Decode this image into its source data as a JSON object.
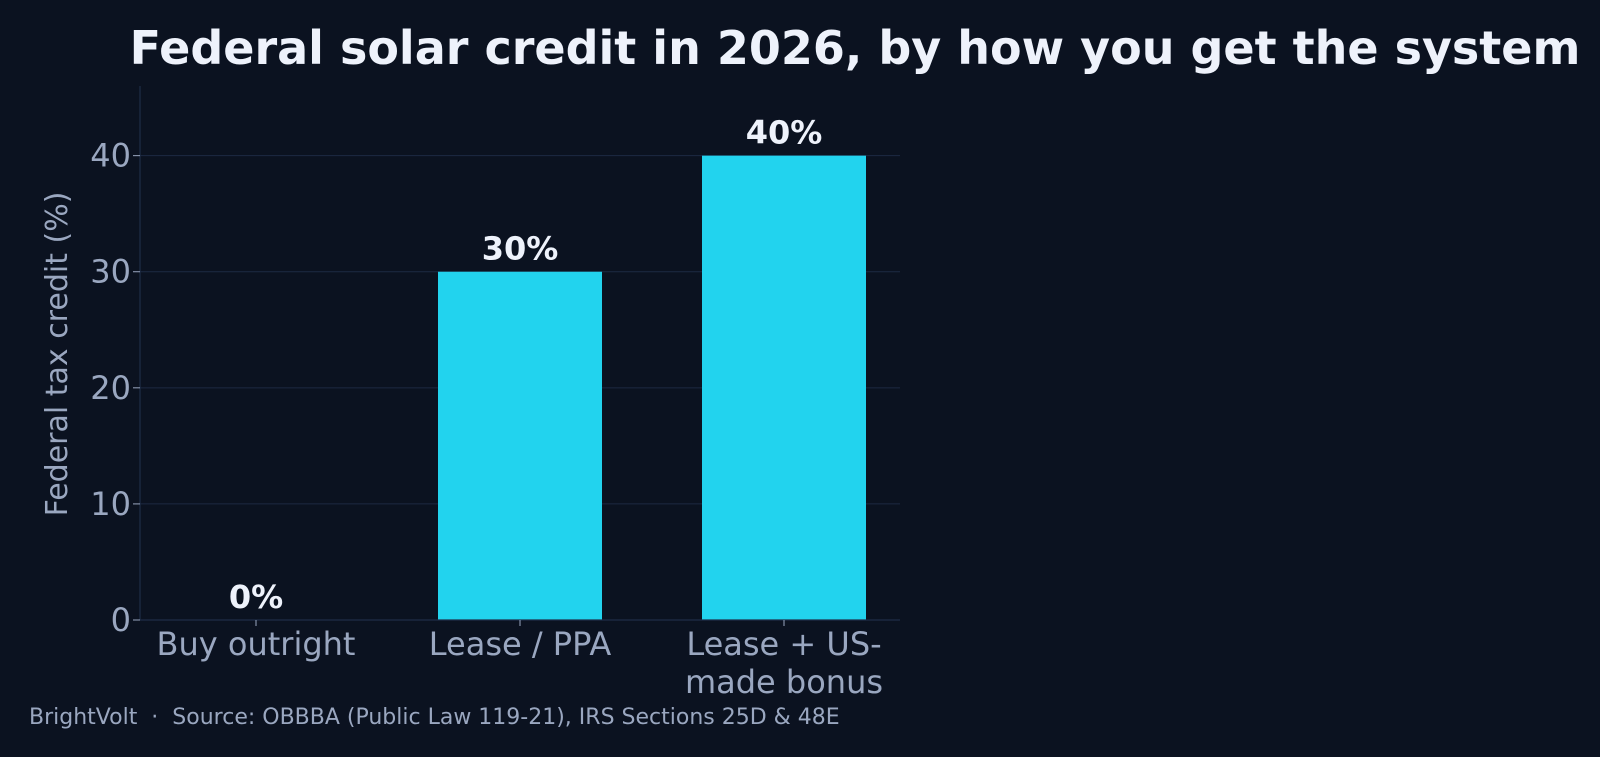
{
  "chart_data": {
    "type": "bar",
    "title": "Federal solar credit in 2026, by how you get the system",
    "xlabel": "",
    "ylabel": "Federal tax credit (%)",
    "categories": [
      [
        "Buy outright"
      ],
      [
        "Lease / PPA"
      ],
      [
        "Lease + US-",
        "made bonus"
      ]
    ],
    "values": [
      0,
      30,
      40
    ],
    "value_labels": [
      "0%",
      "30%",
      "40%"
    ],
    "ylim": [
      0,
      46
    ],
    "yticks": [
      0,
      10,
      20,
      30,
      40
    ],
    "ytick_labels": [
      "0",
      "10",
      "20",
      "30",
      "40"
    ],
    "grid": true,
    "legend": "none",
    "bar_color": "#22d3ee",
    "background_color": "#0b1220"
  },
  "footer": {
    "text": "BrightVolt  ·  Source: OBBBA (Public Law 119-21), IRS Sections 25D & 48E"
  }
}
